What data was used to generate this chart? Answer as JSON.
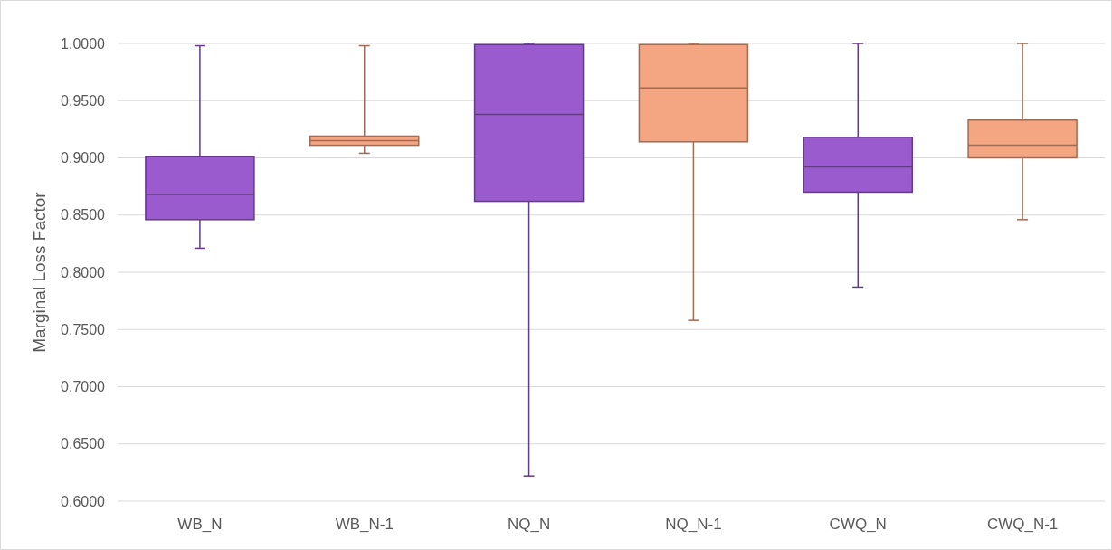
{
  "chart_data": {
    "type": "box",
    "ylabel": "Marginal Loss Factor",
    "categories": [
      "WB_N",
      "WB_N-1",
      "NQ_N",
      "NQ_N-1",
      "CWQ_N",
      "CWQ_N-1"
    ],
    "boxes": [
      {
        "low": 0.821,
        "q1": 0.846,
        "median": 0.868,
        "q3": 0.901,
        "high": 0.998
      },
      {
        "low": 0.904,
        "q1": 0.911,
        "median": 0.915,
        "q3": 0.919,
        "high": 0.998
      },
      {
        "low": 0.622,
        "q1": 0.862,
        "median": 0.938,
        "q3": 0.999,
        "high": 1.0
      },
      {
        "low": 0.758,
        "q1": 0.914,
        "median": 0.961,
        "q3": 0.999,
        "high": 1.0
      },
      {
        "low": 0.787,
        "q1": 0.87,
        "median": 0.892,
        "q3": 0.918,
        "high": 1.0
      },
      {
        "low": 0.846,
        "q1": 0.9,
        "median": 0.911,
        "q3": 0.933,
        "high": 1.0
      }
    ],
    "colors": [
      "#9a5bcf",
      "#f4a582",
      "#9a5bcf",
      "#f4a582",
      "#9a5bcf",
      "#f4a582"
    ],
    "ylim": [
      0.6,
      1.0
    ],
    "yticks": [
      {
        "value": 0.6,
        "label": "0.6000"
      },
      {
        "value": 0.65,
        "label": "0.6500"
      },
      {
        "value": 0.7,
        "label": "0.7000"
      },
      {
        "value": 0.75,
        "label": "0.7500"
      },
      {
        "value": 0.8,
        "label": "0.8000"
      },
      {
        "value": 0.85,
        "label": "0.8500"
      },
      {
        "value": 0.9,
        "label": "0.9000"
      },
      {
        "value": 0.95,
        "label": "0.9500"
      },
      {
        "value": 1.0,
        "label": "1.0000"
      }
    ],
    "grid": "y"
  }
}
